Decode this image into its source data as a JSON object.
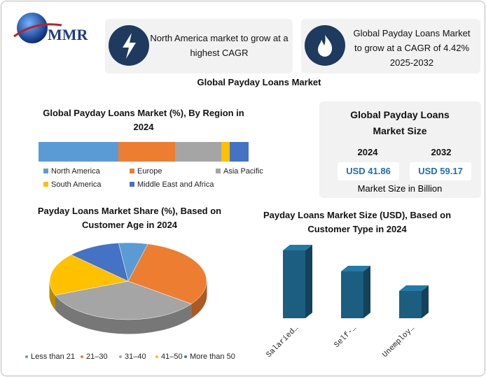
{
  "header": {
    "logo": "MMR",
    "highlights": [
      "North America market to grow at a highest CAGR",
      "Global Payday Loans Market to grow at a CAGR of 4.42% 2025-2032"
    ]
  },
  "title": "Global Payday Loans Market",
  "market_size": {
    "title": "Global Payday Loans Market Size",
    "years": [
      "2024",
      "2032"
    ],
    "values": [
      "USD 41.86",
      "USD 59.17"
    ],
    "note": "Market Size in Billion"
  },
  "chart_data": [
    {
      "type": "stacked_bar",
      "title": "Global Payday Loans Market (%), By Region in 2024",
      "categories": [
        "North America",
        "Europe",
        "Asia Pacific",
        "South America",
        "Middle East and Africa"
      ],
      "values": [
        38,
        27,
        22,
        4,
        9
      ],
      "colors": [
        "#5b9bd5",
        "#ed7d31",
        "#a5a5a5",
        "#ffc000",
        "#4472c4"
      ]
    },
    {
      "type": "pie",
      "title": "Payday Loans Market Share (%), Based on Customer Age in 2024",
      "categories": [
        "Less than 21",
        "21–30",
        "31–40",
        "41–50",
        "More than 50"
      ],
      "values": [
        6,
        31,
        34,
        18,
        11
      ],
      "colors": [
        "#5b9bd5",
        "#ed7d31",
        "#a5a5a5",
        "#ffc000",
        "#4472c4"
      ]
    },
    {
      "type": "bar",
      "title": "Payday Loans Market Size (USD), Based on Customer Type in 2024",
      "categories": [
        "Salaried…",
        "Self-…",
        "Unemploy…"
      ],
      "values": [
        97,
        67,
        39
      ],
      "color": "#1b5e80"
    }
  ]
}
